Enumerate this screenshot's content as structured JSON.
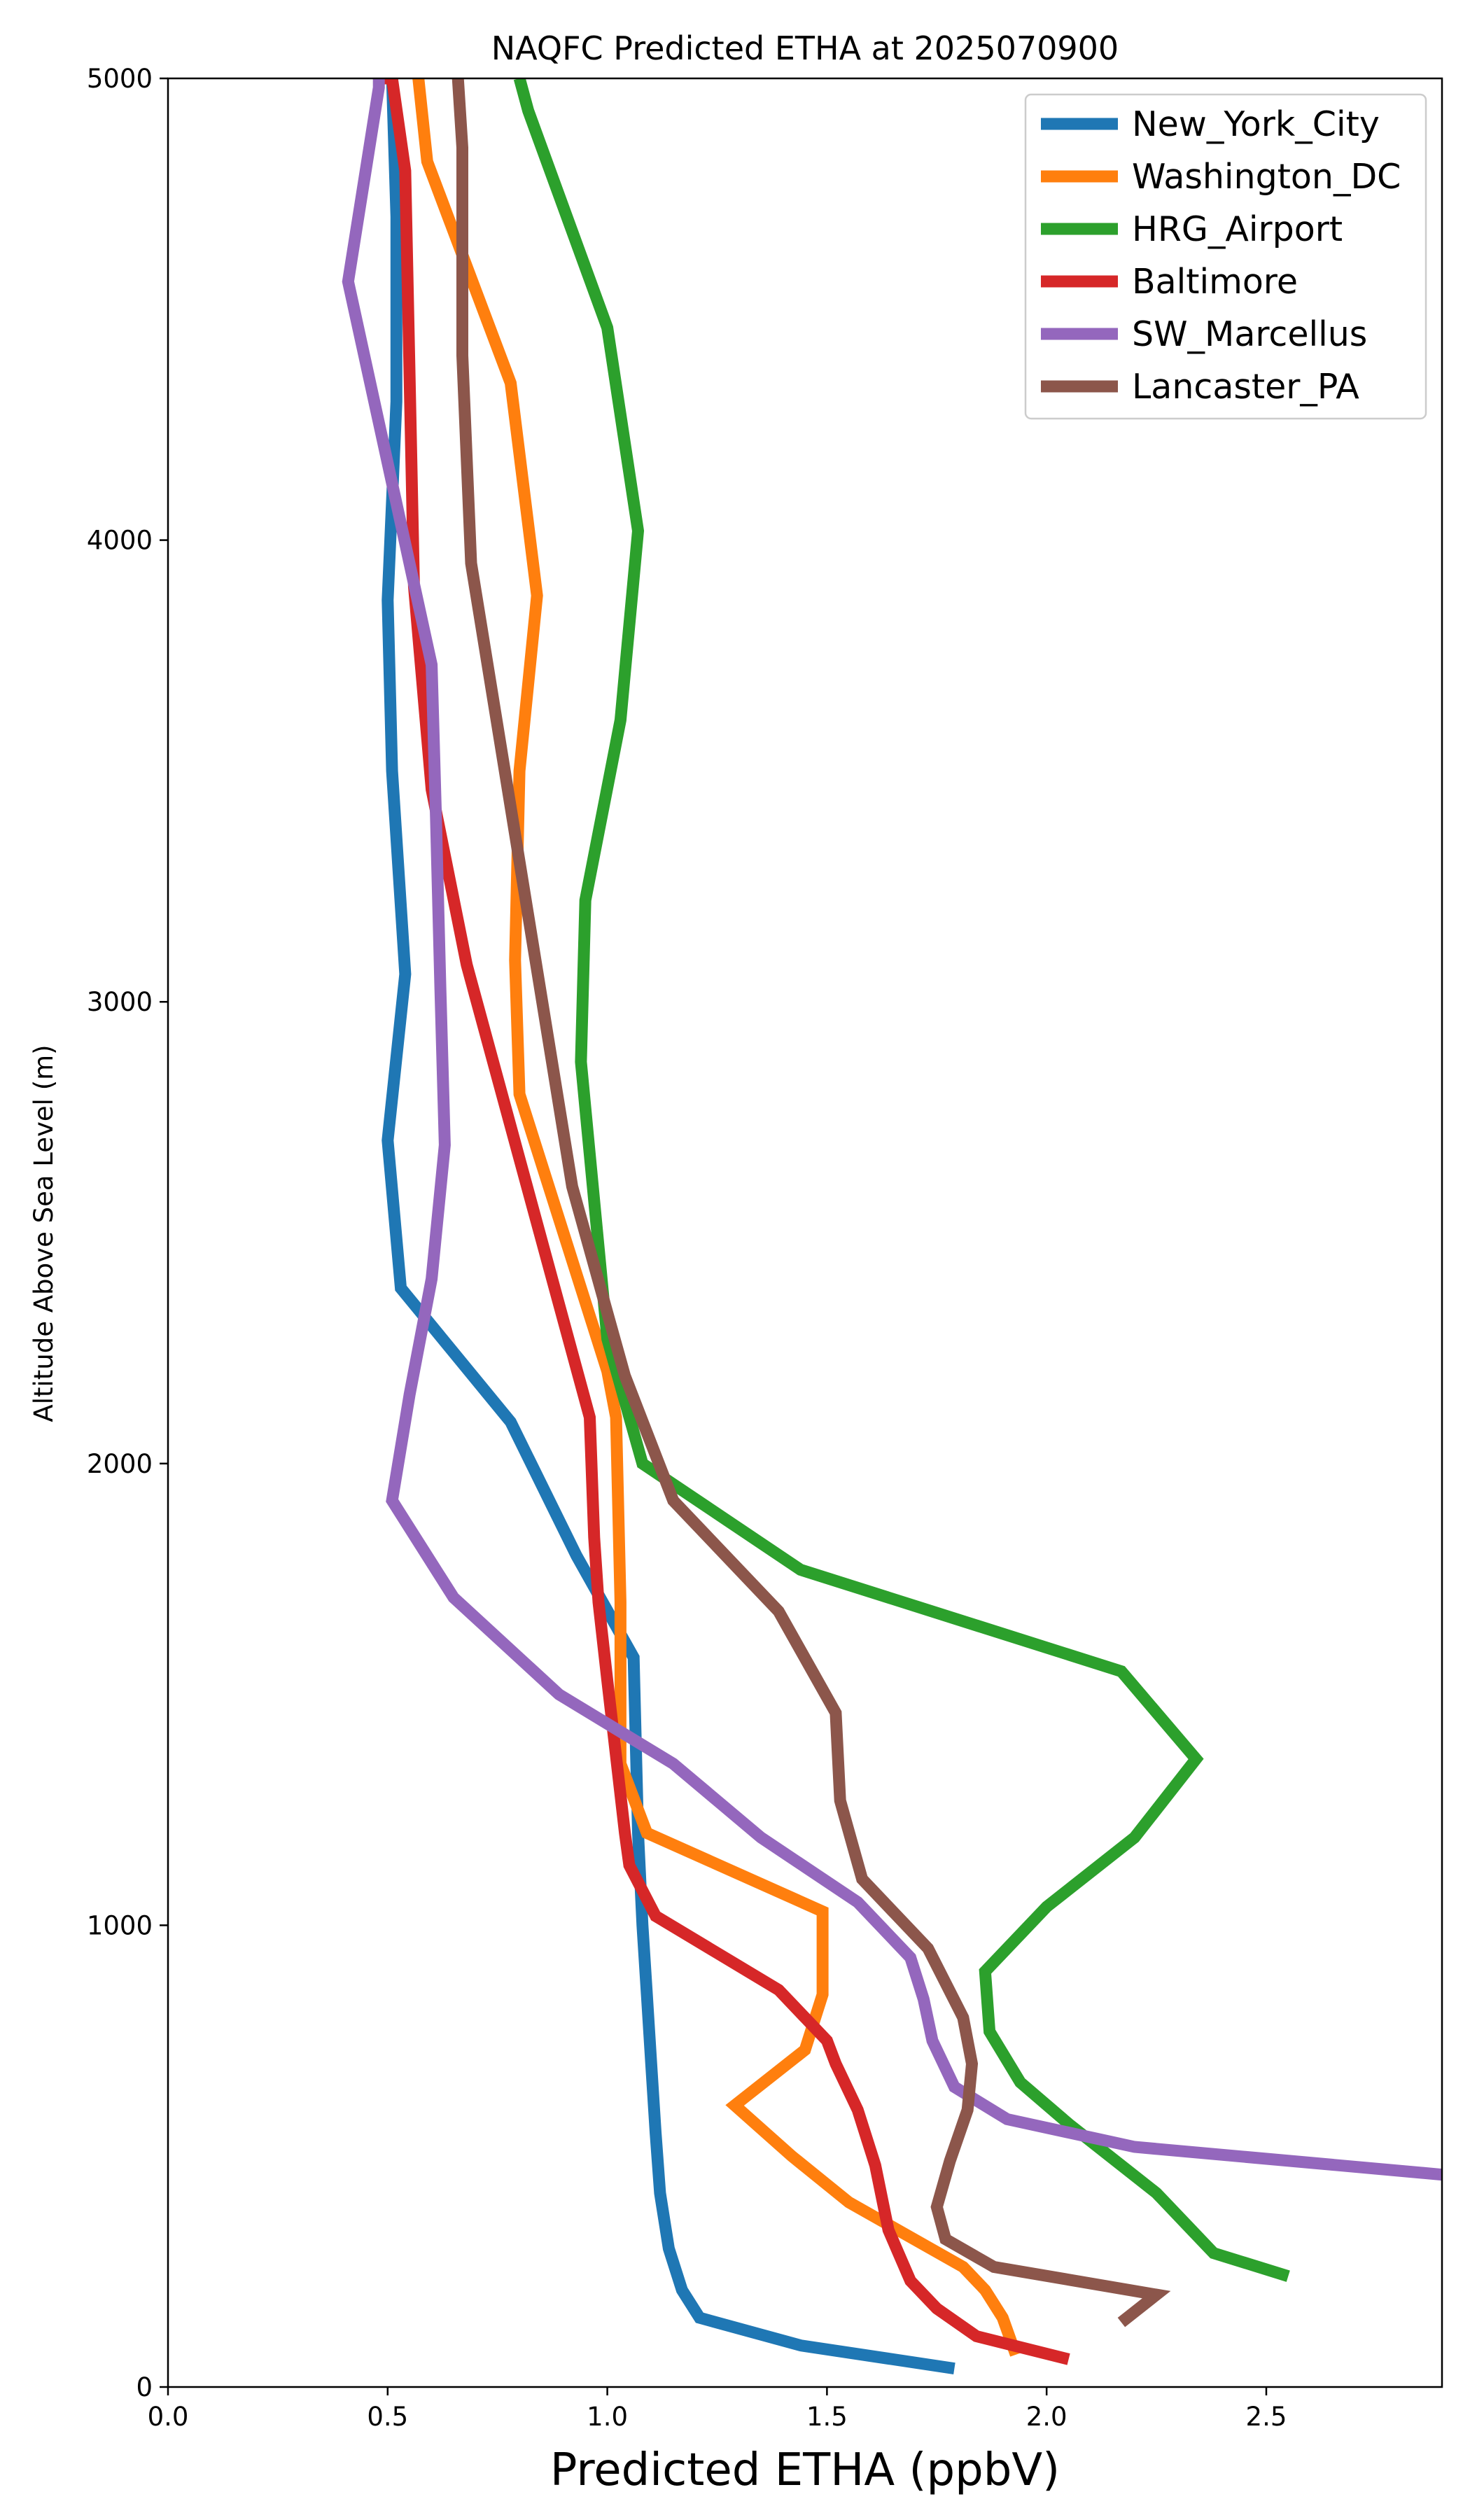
{
  "chart_data": {
    "type": "line",
    "title": "NAQFC Predicted ETHA at 2025070900",
    "xlabel": "Predicted ETHA (ppbV)",
    "ylabel": "Altitude Above Sea Level (m)",
    "xlim": [
      0.0,
      2.9
    ],
    "ylim": [
      0,
      5000
    ],
    "xticks": [
      0.0,
      0.5,
      1.0,
      1.5,
      2.0,
      2.5
    ],
    "xtick_labels": [
      "0.0",
      "0.5",
      "1.0",
      "1.5",
      "2.0",
      "2.5"
    ],
    "yticks": [
      0,
      1000,
      2000,
      3000,
      4000,
      5000
    ],
    "ytick_labels": [
      "0",
      "1000",
      "2000",
      "3000",
      "4000",
      "5000"
    ],
    "grid": false,
    "legend_position": "top-right",
    "series": [
      {
        "name": "New_York_City",
        "color": "#1f77b4",
        "x": [
          1.79,
          1.44,
          1.21,
          1.17,
          1.14,
          1.12,
          1.11,
          1.1,
          1.09,
          1.08,
          1.07,
          1.06,
          0.93,
          0.78,
          0.53,
          0.5,
          0.54,
          0.51,
          0.5,
          0.52,
          0.52,
          0.51
        ],
        "y": [
          40,
          90,
          150,
          210,
          300,
          420,
          550,
          700,
          850,
          1000,
          1200,
          1580,
          1800,
          2090,
          2380,
          2700,
          3060,
          3500,
          3870,
          4300,
          4700,
          5000
        ]
      },
      {
        "name": "Washington_DC",
        "color": "#ff7f0e",
        "x": [
          1.93,
          1.9,
          1.86,
          1.81,
          1.55,
          1.42,
          1.29,
          1.45,
          1.49,
          1.49,
          1.09,
          1.03,
          1.03,
          1.02,
          1.0,
          0.8,
          0.79,
          0.8,
          0.84,
          0.78,
          0.59,
          0.57,
          0.57
        ],
        "y": [
          70,
          150,
          210,
          260,
          400,
          500,
          610,
          730,
          850,
          1030,
          1200,
          1350,
          1700,
          2100,
          2200,
          2800,
          3090,
          3500,
          3880,
          4340,
          4820,
          5000,
          5000
        ]
      },
      {
        "name": "HRG_Airport",
        "color": "#2ca02c",
        "x": [
          2.55,
          2.38,
          2.32,
          2.25,
          2.05,
          1.94,
          1.87,
          1.86,
          2.0,
          2.2,
          2.34,
          2.17,
          1.44,
          1.08,
          1.0,
          0.94,
          0.95,
          1.03,
          1.07,
          1.0,
          0.82,
          0.8
        ],
        "y": [
          240,
          290,
          350,
          420,
          570,
          660,
          770,
          900,
          1040,
          1190,
          1360,
          1550,
          1770,
          2000,
          2270,
          2870,
          3220,
          3610,
          4020,
          4460,
          4930,
          5000
        ]
      },
      {
        "name": "Baltimore",
        "color": "#d62728",
        "x": [
          2.05,
          1.84,
          1.75,
          1.69,
          1.64,
          1.61,
          1.57,
          1.52,
          1.5,
          1.39,
          1.11,
          1.05,
          1.04,
          1.0,
          0.98,
          0.97,
          0.96,
          0.68,
          0.6,
          0.56,
          0.55,
          0.54,
          0.51,
          0.48
        ],
        "y": [
          60,
          110,
          170,
          230,
          340,
          480,
          600,
          700,
          750,
          860,
          1020,
          1130,
          1200,
          1530,
          1700,
          1840,
          2100,
          3080,
          3460,
          3900,
          4350,
          4800,
          5000,
          5000
        ]
      },
      {
        "name": "SW_Marcellus",
        "color": "#9467bd",
        "x": [
          2.9,
          2.2,
          1.91,
          1.79,
          1.74,
          1.72,
          1.69,
          1.57,
          1.35,
          1.15,
          0.89,
          0.65,
          0.51,
          0.55,
          0.6,
          0.63,
          0.62,
          0.61,
          0.6,
          0.41,
          0.48,
          0.48
        ],
        "y": [
          460,
          520,
          580,
          650,
          750,
          840,
          930,
          1050,
          1190,
          1350,
          1500,
          1710,
          1920,
          2150,
          2400,
          2690,
          3030,
          3400,
          3730,
          4560,
          4980,
          5000
        ]
      },
      {
        "name": "Lancaster_PA",
        "color": "#8c564b",
        "x": [
          2.17,
          2.25,
          1.88,
          1.77,
          1.75,
          1.78,
          1.82,
          1.83,
          1.81,
          1.73,
          1.58,
          1.53,
          1.52,
          1.39,
          1.15,
          1.04,
          0.92,
          0.69,
          0.67,
          0.67,
          0.66
        ],
        "y": [
          140,
          200,
          260,
          320,
          390,
          490,
          600,
          700,
          800,
          950,
          1100,
          1270,
          1460,
          1680,
          1920,
          2190,
          2600,
          3950,
          4400,
          4850,
          5000
        ]
      }
    ]
  }
}
